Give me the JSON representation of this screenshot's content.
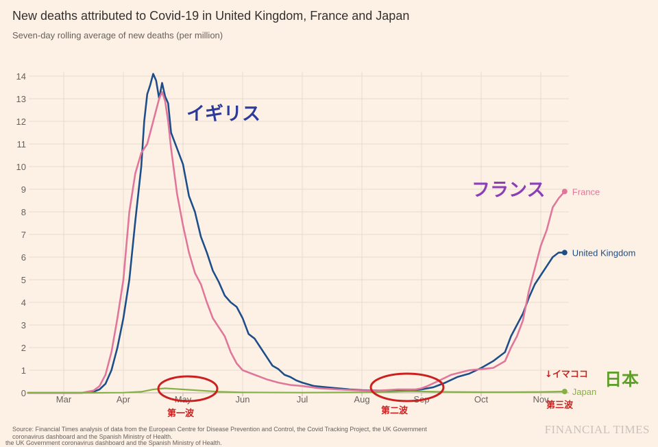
{
  "header": {
    "title": "New deaths attributed to Covid-19 in United Kingdom, France and Japan",
    "subtitle": "Seven-day rolling average of new deaths (per million)"
  },
  "footer": {
    "source": "Source: Financial Times analysis of data from the European Centre for Disease Prevention and Control, the Covid Tracking Project, the UK Government coronavirus dashboard and the Spanish Ministry of Health.",
    "source_dup": "the UK Government coronavirus dashboard and the Spanish Ministry of Health.",
    "brand": "FINANCIAL TIMES"
  },
  "annotations": {
    "uk_jp": "イギリス",
    "france_jp": "フランス",
    "japan_jp": "日本",
    "now_marker": "↓イマココ",
    "wave1": "第一波",
    "wave2": "第二波",
    "wave3": "第三波"
  },
  "colors": {
    "uk": "#1d4e89",
    "france": "#e0779b",
    "japan": "#86b043",
    "grid": "#e6d9ce",
    "axis_text": "#66605c",
    "uk_annotation": "#2b3a9b",
    "france_annotation": "#8a3fb5",
    "japan_annotation": "#5f9e2c",
    "wave_circle": "#cc1f1f"
  },
  "chart_data": {
    "type": "line",
    "xlabel": "",
    "ylabel": "",
    "ylim": [
      0,
      14
    ],
    "yticks": [
      0,
      1,
      2,
      3,
      4,
      5,
      6,
      7,
      8,
      9,
      10,
      11,
      12,
      13,
      14
    ],
    "xticks": [
      "Mar",
      "Apr",
      "May",
      "Jun",
      "Jul",
      "Aug",
      "Sep",
      "Oct",
      "Nov"
    ],
    "x_unit": "months since start of March 2020 (2020-03-01 = 0)",
    "grid": true,
    "legend": "end-of-line labels",
    "series": [
      {
        "name": "United Kingdom",
        "key": "uk",
        "points": [
          [
            -0.6,
            0
          ],
          [
            0.0,
            0
          ],
          [
            0.3,
            0
          ],
          [
            0.5,
            0.05
          ],
          [
            0.6,
            0.15
          ],
          [
            0.7,
            0.4
          ],
          [
            0.8,
            1.0
          ],
          [
            0.9,
            2.0
          ],
          [
            1.0,
            3.3
          ],
          [
            1.1,
            5.0
          ],
          [
            1.2,
            7.6
          ],
          [
            1.3,
            10.0
          ],
          [
            1.35,
            12.0
          ],
          [
            1.4,
            13.2
          ],
          [
            1.45,
            13.6
          ],
          [
            1.5,
            14.1
          ],
          [
            1.55,
            13.8
          ],
          [
            1.6,
            13.0
          ],
          [
            1.65,
            13.7
          ],
          [
            1.7,
            13.1
          ],
          [
            1.75,
            12.8
          ],
          [
            1.8,
            11.5
          ],
          [
            1.9,
            10.8
          ],
          [
            2.0,
            10.1
          ],
          [
            2.1,
            8.7
          ],
          [
            2.2,
            8.0
          ],
          [
            2.3,
            6.9
          ],
          [
            2.4,
            6.2
          ],
          [
            2.5,
            5.4
          ],
          [
            2.6,
            4.9
          ],
          [
            2.7,
            4.3
          ],
          [
            2.8,
            4.0
          ],
          [
            2.9,
            3.8
          ],
          [
            3.0,
            3.3
          ],
          [
            3.1,
            2.6
          ],
          [
            3.2,
            2.4
          ],
          [
            3.3,
            2.0
          ],
          [
            3.4,
            1.6
          ],
          [
            3.5,
            1.2
          ],
          [
            3.6,
            1.05
          ],
          [
            3.7,
            0.8
          ],
          [
            3.8,
            0.7
          ],
          [
            3.9,
            0.55
          ],
          [
            4.0,
            0.45
          ],
          [
            4.2,
            0.3
          ],
          [
            4.4,
            0.25
          ],
          [
            4.6,
            0.2
          ],
          [
            4.8,
            0.15
          ],
          [
            5.0,
            0.12
          ],
          [
            5.3,
            0.1
          ],
          [
            5.6,
            0.1
          ],
          [
            5.9,
            0.12
          ],
          [
            6.0,
            0.15
          ],
          [
            6.2,
            0.25
          ],
          [
            6.4,
            0.45
          ],
          [
            6.6,
            0.7
          ],
          [
            6.8,
            0.85
          ],
          [
            7.0,
            1.1
          ],
          [
            7.2,
            1.4
          ],
          [
            7.4,
            1.8
          ],
          [
            7.5,
            2.5
          ],
          [
            7.6,
            3.0
          ],
          [
            7.7,
            3.5
          ],
          [
            7.8,
            4.2
          ],
          [
            7.9,
            4.8
          ],
          [
            8.0,
            5.2
          ],
          [
            8.1,
            5.6
          ],
          [
            8.2,
            6.0
          ],
          [
            8.3,
            6.2
          ],
          [
            8.4,
            6.2
          ]
        ]
      },
      {
        "name": "France",
        "key": "france",
        "points": [
          [
            -0.6,
            0
          ],
          [
            0.0,
            0
          ],
          [
            0.3,
            0
          ],
          [
            0.5,
            0.1
          ],
          [
            0.6,
            0.3
          ],
          [
            0.7,
            0.8
          ],
          [
            0.8,
            1.8
          ],
          [
            0.9,
            3.3
          ],
          [
            1.0,
            5.0
          ],
          [
            1.1,
            8.0
          ],
          [
            1.2,
            9.7
          ],
          [
            1.3,
            10.6
          ],
          [
            1.4,
            11.0
          ],
          [
            1.5,
            12.0
          ],
          [
            1.55,
            12.5
          ],
          [
            1.6,
            13.0
          ],
          [
            1.65,
            13.3
          ],
          [
            1.7,
            12.9
          ],
          [
            1.75,
            12.0
          ],
          [
            1.8,
            10.8
          ],
          [
            1.9,
            8.8
          ],
          [
            2.0,
            7.4
          ],
          [
            2.1,
            6.2
          ],
          [
            2.2,
            5.3
          ],
          [
            2.3,
            4.8
          ],
          [
            2.4,
            4.0
          ],
          [
            2.5,
            3.3
          ],
          [
            2.6,
            2.9
          ],
          [
            2.7,
            2.5
          ],
          [
            2.8,
            1.8
          ],
          [
            2.9,
            1.3
          ],
          [
            3.0,
            1.0
          ],
          [
            3.2,
            0.8
          ],
          [
            3.4,
            0.6
          ],
          [
            3.6,
            0.45
          ],
          [
            3.8,
            0.35
          ],
          [
            4.0,
            0.3
          ],
          [
            4.3,
            0.2
          ],
          [
            4.6,
            0.15
          ],
          [
            5.0,
            0.1
          ],
          [
            5.3,
            0.1
          ],
          [
            5.6,
            0.15
          ],
          [
            5.9,
            0.15
          ],
          [
            6.0,
            0.2
          ],
          [
            6.1,
            0.3
          ],
          [
            6.3,
            0.55
          ],
          [
            6.5,
            0.8
          ],
          [
            6.8,
            1.0
          ],
          [
            7.0,
            1.05
          ],
          [
            7.2,
            1.1
          ],
          [
            7.4,
            1.4
          ],
          [
            7.5,
            2.0
          ],
          [
            7.6,
            2.5
          ],
          [
            7.7,
            3.2
          ],
          [
            7.8,
            4.5
          ],
          [
            7.9,
            5.5
          ],
          [
            8.0,
            6.5
          ],
          [
            8.1,
            7.2
          ],
          [
            8.2,
            8.2
          ],
          [
            8.3,
            8.6
          ],
          [
            8.4,
            8.9
          ]
        ]
      },
      {
        "name": "Japan",
        "key": "japan",
        "points": [
          [
            -0.6,
            0
          ],
          [
            0.5,
            0
          ],
          [
            1.0,
            0.01
          ],
          [
            1.3,
            0.05
          ],
          [
            1.5,
            0.15
          ],
          [
            1.7,
            0.2
          ],
          [
            2.0,
            0.15
          ],
          [
            2.3,
            0.1
          ],
          [
            2.6,
            0.05
          ],
          [
            3.0,
            0.02
          ],
          [
            4.0,
            0.01
          ],
          [
            5.0,
            0.02
          ],
          [
            5.5,
            0.05
          ],
          [
            5.8,
            0.07
          ],
          [
            6.0,
            0.06
          ],
          [
            6.5,
            0.04
          ],
          [
            7.0,
            0.03
          ],
          [
            7.5,
            0.03
          ],
          [
            8.0,
            0.04
          ],
          [
            8.4,
            0.06
          ]
        ]
      }
    ]
  }
}
